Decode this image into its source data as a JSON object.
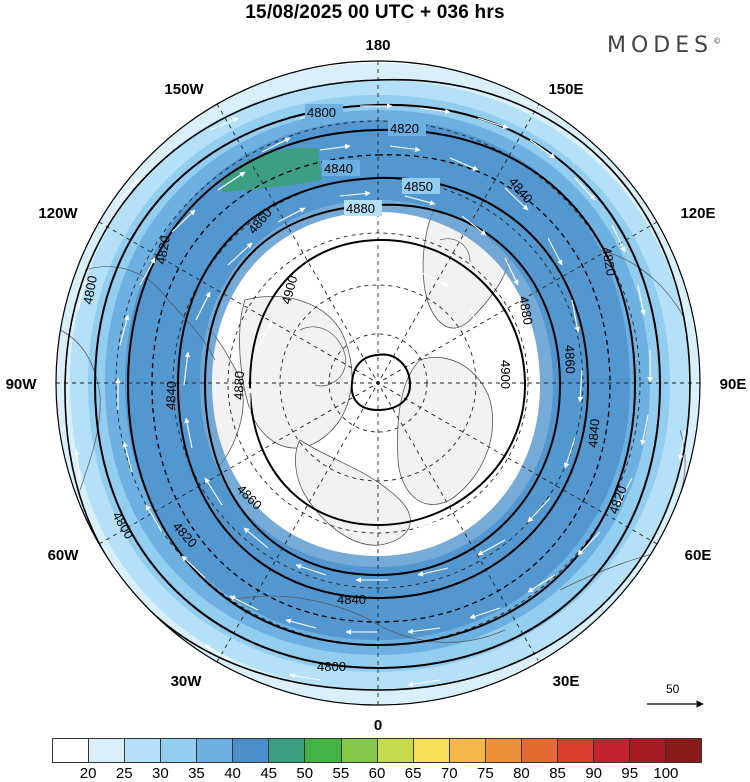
{
  "title": "15/08/2025  00 UTC  + 036 hrs",
  "brand": "MODES",
  "brand_mark": "©",
  "longitude_labels": [
    "180",
    "150E",
    "120E",
    "90E",
    "60E",
    "30E",
    "0",
    "30W",
    "60W",
    "90W",
    "120W",
    "150W"
  ],
  "contour_labels": [
    "4800",
    "4820",
    "4840",
    "4850",
    "4860",
    "4880",
    "4900"
  ],
  "reference_vector": "50",
  "colors": {
    "ocean": "#ffffff",
    "land": "#f2f2f2",
    "coast": "#555555",
    "grid": "#222222",
    "contour": "#000000",
    "vector": "#ffffff"
  },
  "colorbar": {
    "ticks": [
      "20",
      "25",
      "30",
      "35",
      "40",
      "45",
      "50",
      "55",
      "60",
      "65",
      "70",
      "75",
      "80",
      "85",
      "90",
      "95",
      "100"
    ],
    "colors": [
      "#ffffff",
      "#d9f0fb",
      "#b4e1f7",
      "#93cdef",
      "#6db1e2",
      "#4a8fc9",
      "#3e9e84",
      "#43b443",
      "#84c84a",
      "#c6db4a",
      "#f8df56",
      "#f6b84b",
      "#ee8f3a",
      "#e46a33",
      "#da3c30",
      "#c52030",
      "#a61a24",
      "#8b1a1a"
    ]
  }
}
